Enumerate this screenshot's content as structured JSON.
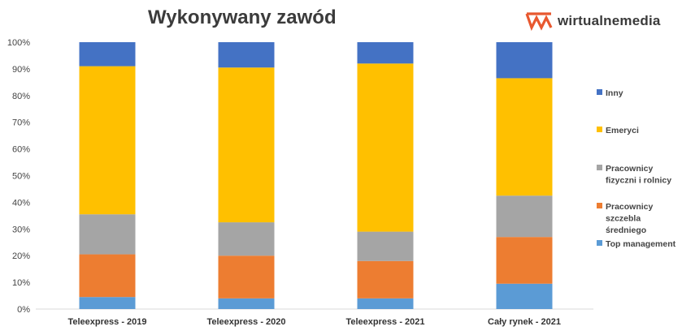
{
  "title": "Wykonywany zawód",
  "brand": {
    "name": "wirtualnemedia",
    "logo_icon": "wm-logo-icon",
    "logo_color": "#e8582f"
  },
  "chart_data": {
    "type": "bar",
    "stacked": "percent",
    "title": "Wykonywany zawód",
    "categories": [
      "Teleexpress - 2019",
      "Teleexpress - 2020",
      "Teleexpress - 2021",
      "Cały rynek - 2021"
    ],
    "y_ticks": [
      "0%",
      "10%",
      "20%",
      "30%",
      "40%",
      "50%",
      "60%",
      "70%",
      "80%",
      "90%",
      "100%"
    ],
    "ylim": [
      0,
      100
    ],
    "grid": false,
    "legend_position": "right",
    "series": [
      {
        "name": "Top management",
        "color": "#5b9bd5",
        "values": [
          4.5,
          4,
          4,
          9.5
        ]
      },
      {
        "name": "Pracownicy szczebla średniego",
        "legend_lines": [
          "Pracownicy",
          "szczebla",
          "średniego"
        ],
        "color": "#ed7d31",
        "values": [
          16,
          16,
          14,
          17.5
        ]
      },
      {
        "name": "Pracownicy fizyczni i rolnicy",
        "legend_lines": [
          "Pracownicy",
          "fizyczni i rolnicy"
        ],
        "color": "#a5a5a5",
        "values": [
          15,
          12.5,
          11,
          15.5
        ]
      },
      {
        "name": "Emeryci",
        "color": "#ffc000",
        "values": [
          55.5,
          58,
          63,
          44
        ]
      },
      {
        "name": "Inny",
        "color": "#4472c4",
        "values": [
          9,
          9.5,
          8,
          13.5
        ]
      }
    ]
  }
}
